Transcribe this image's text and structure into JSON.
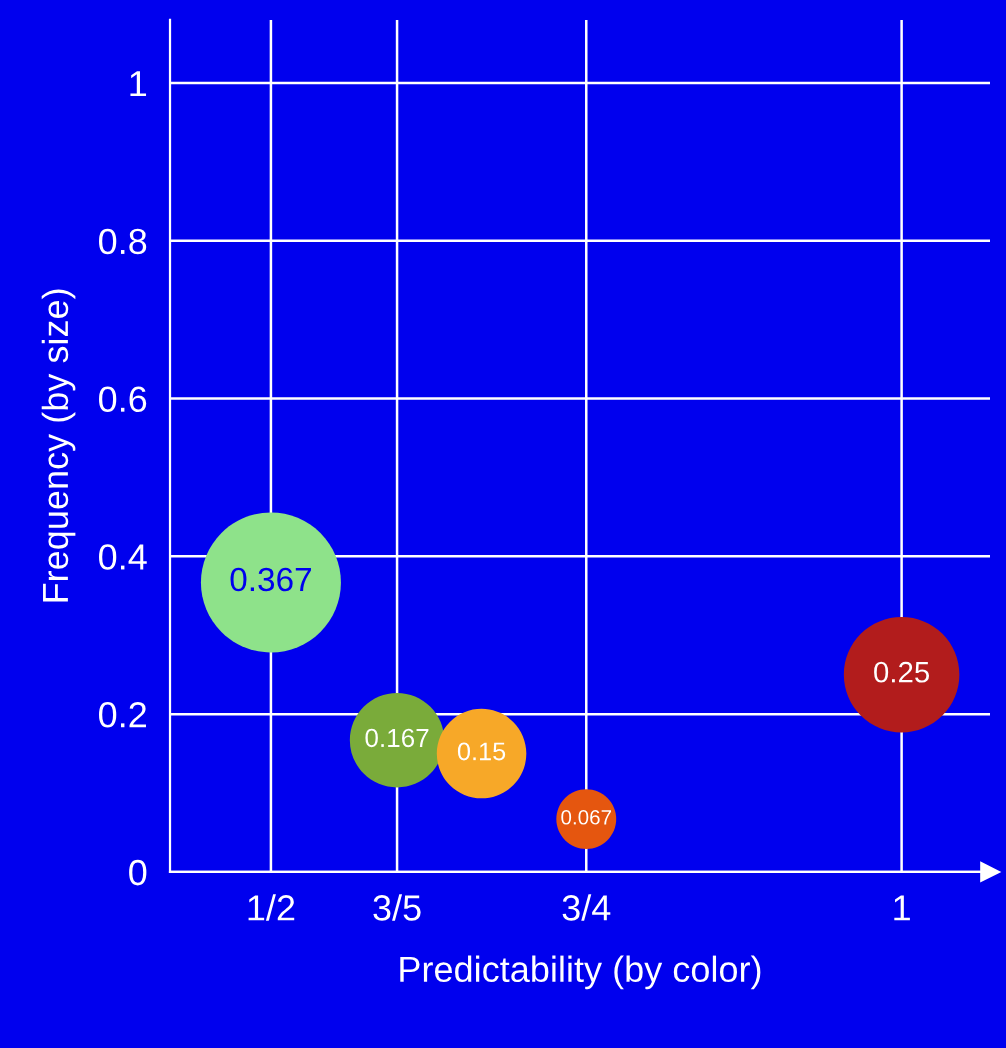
{
  "chart_data": {
    "type": "bubble",
    "xlabel": "Predictability (by color)",
    "ylabel": "Frequency (by size)",
    "x": [
      0.5,
      0.6,
      0.667,
      0.75,
      1
    ],
    "values": [
      0.367,
      0.167,
      0.15,
      0.067,
      0.25
    ],
    "sizes": [
      1,
      0.455,
      0.409,
      0.183,
      0.681
    ],
    "colors": [
      "#8ee28a",
      "#7aab3a",
      "#f7a828",
      "#e5560f",
      "#b21c1c"
    ],
    "value_labels": [
      "0.367",
      "0.167",
      "0.15",
      "0.067",
      "0.25"
    ],
    "xlim": [
      0.42,
      1.07
    ],
    "ylim": [
      0,
      1.08
    ],
    "xticks": [
      {
        "value": 0.5,
        "label": "1/2"
      },
      {
        "value": 0.6,
        "label": "3/5"
      },
      {
        "value": 0.75,
        "label": "3/4"
      },
      1
    ],
    "yticks": [
      0,
      0.2,
      0.4,
      0.6,
      0.8,
      1
    ],
    "grid": true,
    "legend": false
  }
}
